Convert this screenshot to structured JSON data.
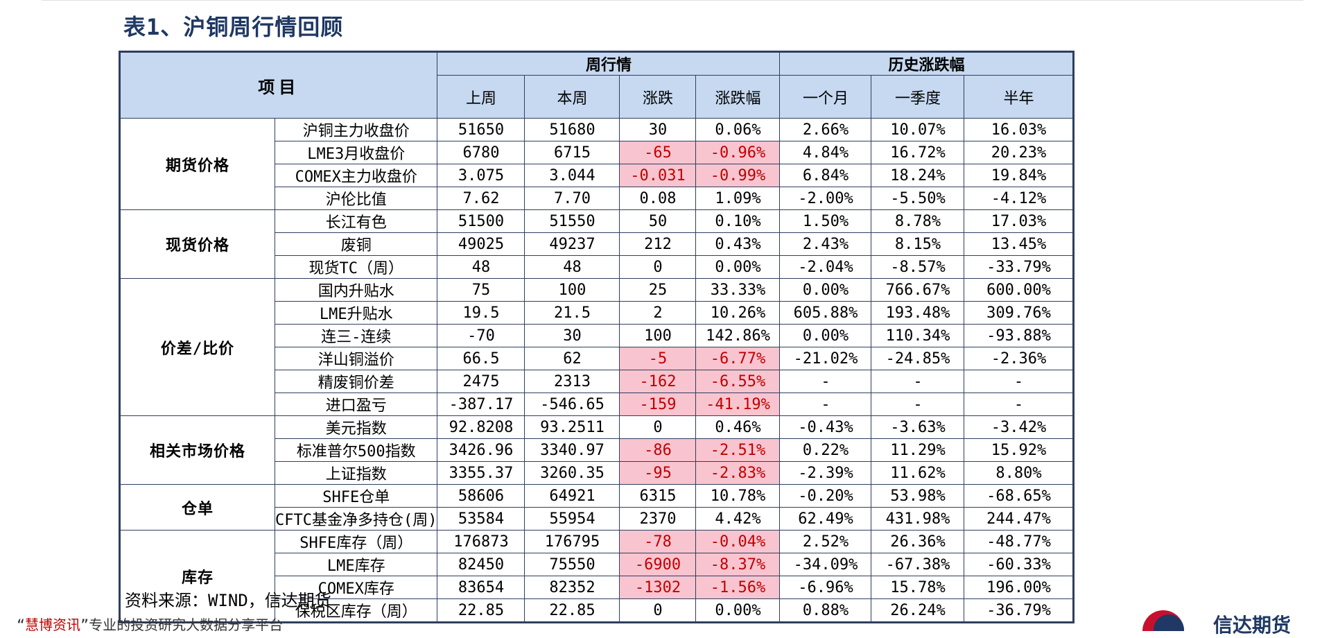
{
  "title": "表1、沪铜周行情回顾",
  "table": {
    "header": {
      "item": "项目",
      "week_group": "周行情",
      "hist_group": "历史涨跌幅",
      "columns": [
        "上周",
        "本周",
        "涨跌",
        "涨跌幅",
        "一个月",
        "一季度",
        "半年"
      ]
    },
    "sections": [
      {
        "name": "期货价格",
        "rows": [
          {
            "label": "沪铜主力收盘价",
            "values": [
              "51650",
              "51680",
              "30",
              "0.06%",
              "2.66%",
              "10.07%",
              "16.03%"
            ],
            "neg": false
          },
          {
            "label": "LME3月收盘价",
            "values": [
              "6780",
              "6715",
              "-65",
              "-0.96%",
              "4.84%",
              "16.72%",
              "20.23%"
            ],
            "neg": true
          },
          {
            "label": "COMEX主力收盘价",
            "values": [
              "3.075",
              "3.044",
              "-0.031",
              "-0.99%",
              "6.84%",
              "18.24%",
              "19.84%"
            ],
            "neg": true
          },
          {
            "label": "沪伦比值",
            "values": [
              "7.62",
              "7.70",
              "0.08",
              "1.09%",
              "-2.00%",
              "-5.50%",
              "-4.12%"
            ],
            "neg": false
          }
        ]
      },
      {
        "name": "现货价格",
        "rows": [
          {
            "label": "长江有色",
            "values": [
              "51500",
              "51550",
              "50",
              "0.10%",
              "1.50%",
              "8.78%",
              "17.03%"
            ],
            "neg": false
          },
          {
            "label": "废铜",
            "values": [
              "49025",
              "49237",
              "212",
              "0.43%",
              "2.43%",
              "8.15%",
              "13.45%"
            ],
            "neg": false
          },
          {
            "label": "现货TC（周）",
            "values": [
              "48",
              "48",
              "0",
              "0.00%",
              "-2.04%",
              "-8.57%",
              "-33.79%"
            ],
            "neg": false
          }
        ]
      },
      {
        "name": "价差/比价",
        "rows": [
          {
            "label": "国内升贴水",
            "values": [
              "75",
              "100",
              "25",
              "33.33%",
              "0.00%",
              "766.67%",
              "600.00%"
            ],
            "neg": false
          },
          {
            "label": "LME升贴水",
            "values": [
              "19.5",
              "21.5",
              "2",
              "10.26%",
              "605.88%",
              "193.48%",
              "309.76%"
            ],
            "neg": false
          },
          {
            "label": "连三-连续",
            "values": [
              "-70",
              "30",
              "100",
              "142.86%",
              "0.00%",
              "110.34%",
              "-93.88%"
            ],
            "neg": false
          },
          {
            "label": "洋山铜溢价",
            "values": [
              "66.5",
              "62",
              "-5",
              "-6.77%",
              "-21.02%",
              "-24.85%",
              "-2.36%"
            ],
            "neg": true
          },
          {
            "label": "精废铜价差",
            "values": [
              "2475",
              "2313",
              "-162",
              "-6.55%",
              "-",
              "-",
              "-"
            ],
            "neg": true
          },
          {
            "label": "进口盈亏",
            "values": [
              "-387.17",
              "-546.65",
              "-159",
              "-41.19%",
              "-",
              "-",
              "-"
            ],
            "neg": true
          }
        ]
      },
      {
        "name": "相关市场价格",
        "rows": [
          {
            "label": "美元指数",
            "values": [
              "92.8208",
              "93.2511",
              "0",
              "0.46%",
              "-0.43%",
              "-3.63%",
              "-3.42%"
            ],
            "neg": false
          },
          {
            "label": "标准普尔500指数",
            "values": [
              "3426.96",
              "3340.97",
              "-86",
              "-2.51%",
              "0.22%",
              "11.29%",
              "15.92%"
            ],
            "neg": true
          },
          {
            "label": "上证指数",
            "values": [
              "3355.37",
              "3260.35",
              "-95",
              "-2.83%",
              "-2.39%",
              "11.62%",
              "8.80%"
            ],
            "neg": true
          }
        ]
      },
      {
        "name": "仓单",
        "rows": [
          {
            "label": "SHFE仓单",
            "values": [
              "58606",
              "64921",
              "6315",
              "10.78%",
              "-0.20%",
              "53.98%",
              "-68.65%"
            ],
            "neg": false
          },
          {
            "label": "CFTC基金净多持仓(周)",
            "values": [
              "53584",
              "55954",
              "2370",
              "4.42%",
              "62.49%",
              "431.98%",
              "244.47%"
            ],
            "neg": false
          }
        ]
      },
      {
        "name": "库存",
        "rows": [
          {
            "label": "SHFE库存（周）",
            "values": [
              "176873",
              "176795",
              "-78",
              "-0.04%",
              "2.52%",
              "26.36%",
              "-48.77%"
            ],
            "neg": true
          },
          {
            "label": "LME库存",
            "values": [
              "82450",
              "75550",
              "-6900",
              "-8.37%",
              "-34.09%",
              "-67.38%",
              "-60.33%"
            ],
            "neg": true
          },
          {
            "label": "COMEX库存",
            "values": [
              "83654",
              "82352",
              "-1302",
              "-1.56%",
              "-6.96%",
              "15.78%",
              "196.00%"
            ],
            "neg": true
          },
          {
            "label": "保税区库存（周）",
            "values": [
              "22.85",
              "22.85",
              "0",
              "0.00%",
              "0.88%",
              "26.24%",
              "-36.79%"
            ],
            "neg": false
          }
        ]
      }
    ]
  },
  "source": "资料来源：WIND，信达期货",
  "footer": {
    "brand": "慧博资讯",
    "tagline": "专业的投资研究大数据分享平台",
    "logo_text": "信达期货"
  },
  "colors": {
    "header_bg": "#c6d9f1",
    "negative_bg": "#f8c4cf",
    "negative_text": "#c00000",
    "border": "#2f3e5c"
  }
}
